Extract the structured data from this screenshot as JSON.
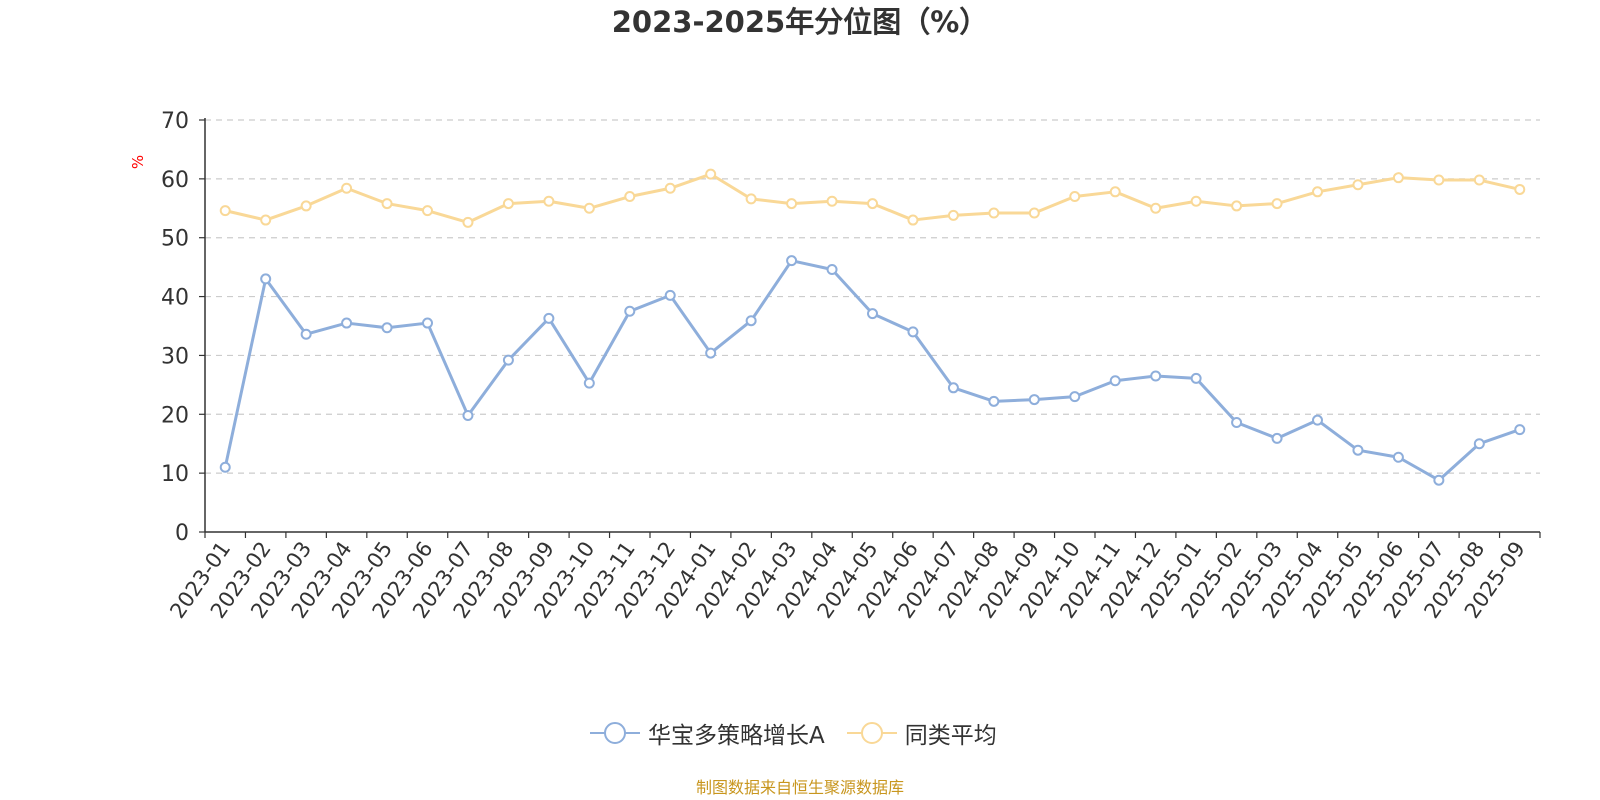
{
  "chart_data": {
    "type": "line",
    "title": "2023-2025年分位图（%）",
    "ylabel": "%",
    "ylim": [
      0,
      70
    ],
    "yticks": [
      0,
      10,
      20,
      30,
      40,
      50,
      60,
      70
    ],
    "grid": true,
    "legend_position": "bottom",
    "categories": [
      "2023-01",
      "2023-02",
      "2023-03",
      "2023-04",
      "2023-05",
      "2023-06",
      "2023-07",
      "2023-08",
      "2023-09",
      "2023-10",
      "2023-11",
      "2023-12",
      "2024-01",
      "2024-02",
      "2024-03",
      "2024-04",
      "2024-05",
      "2024-06",
      "2024-07",
      "2024-08",
      "2024-09",
      "2024-10",
      "2024-11",
      "2024-12",
      "2025-01",
      "2025-02",
      "2025-03",
      "2025-04",
      "2025-05",
      "2025-06",
      "2025-07",
      "2025-08",
      "2025-09"
    ],
    "series": [
      {
        "name": "华宝多策略增长A",
        "color": "#8eaedb",
        "values": [
          11.0,
          43.0,
          33.6,
          35.5,
          34.7,
          35.5,
          19.8,
          29.2,
          36.3,
          25.3,
          37.5,
          40.2,
          30.4,
          35.9,
          46.1,
          44.6,
          37.1,
          34.0,
          24.5,
          22.2,
          22.5,
          23.0,
          25.7,
          26.5,
          26.1,
          18.6,
          15.9,
          19.0,
          13.9,
          12.7,
          8.8,
          15.0,
          17.4
        ]
      },
      {
        "name": "同类平均",
        "color": "#f9d897",
        "values": [
          54.6,
          53.0,
          55.4,
          58.4,
          55.8,
          54.6,
          52.6,
          55.8,
          56.2,
          55.0,
          57.0,
          58.4,
          60.8,
          56.6,
          55.8,
          56.2,
          55.8,
          53.0,
          53.8,
          54.2,
          54.2,
          57.0,
          57.8,
          55.0,
          56.2,
          55.4,
          55.8,
          57.8,
          59.0,
          60.2,
          59.8,
          59.8,
          58.2
        ]
      }
    ]
  },
  "source_note": "制图数据来自恒生聚源数据库"
}
